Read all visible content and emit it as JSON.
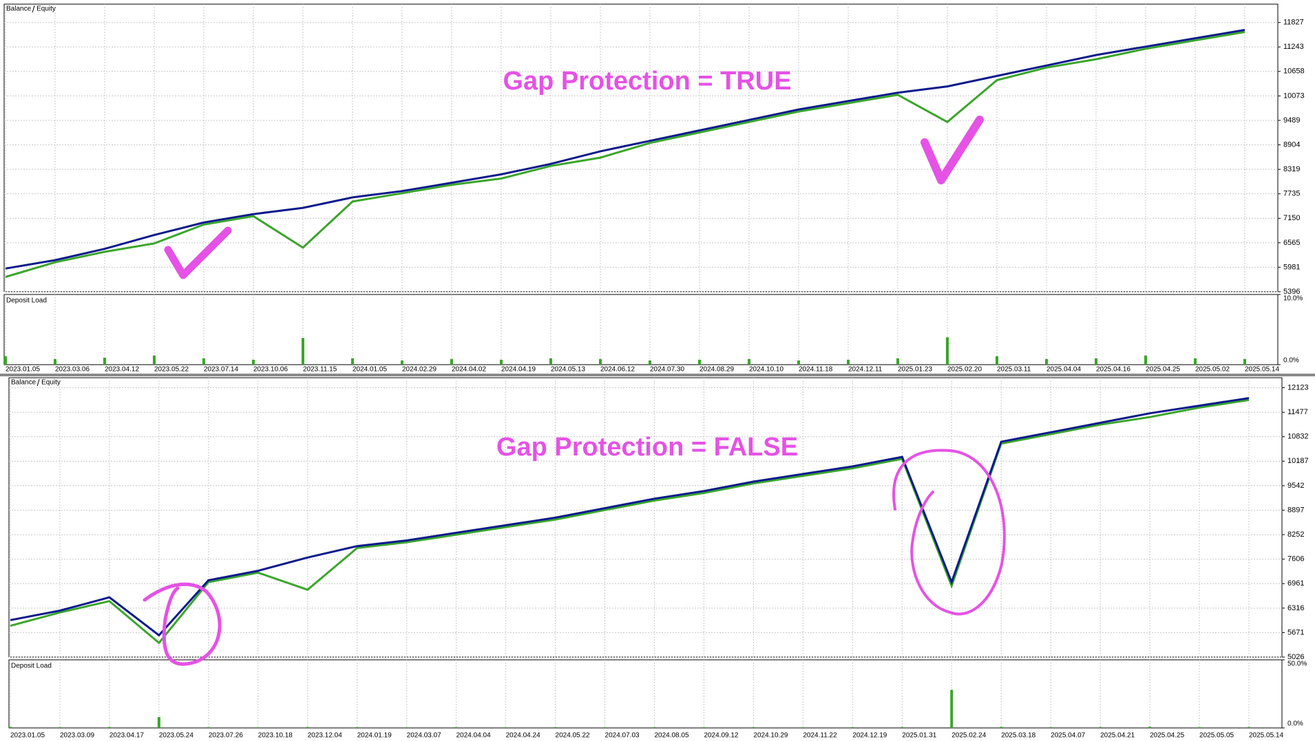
{
  "chart_data": [
    {
      "type": "line",
      "annotation": "Gap Protection = TRUE",
      "categories": [
        "2023.01.05",
        "2023.03.06",
        "2023.04.12",
        "2023.05.22",
        "2023.07.14",
        "2023.10.06",
        "2023.11.15",
        "2024.01.05",
        "2024.02.29",
        "2024.04.02",
        "2024.04.19",
        "2024.05.13",
        "2024.06.12",
        "2024.07.30",
        "2024.08.29",
        "2024.10.10",
        "2024.11.18",
        "2024.12.11",
        "2025.01.23",
        "2025.02.20",
        "2025.03.11",
        "2025.04.04",
        "2025.04.16",
        "2025.04.25",
        "2025.05.02",
        "2025.05.14"
      ],
      "series": [
        {
          "name": "Balance",
          "color": "#0a1a8c",
          "values": [
            5950,
            6150,
            6420,
            6750,
            7050,
            7250,
            7400,
            7650,
            7800,
            8000,
            8200,
            8450,
            8750,
            9000,
            9250,
            9500,
            9750,
            9950,
            10150,
            10300,
            10550,
            10800,
            11050,
            11250,
            11450,
            11650
          ]
        },
        {
          "name": "Equity",
          "color": "#3aa52a",
          "values": [
            5750,
            6100,
            6350,
            6550,
            7000,
            7200,
            6450,
            7550,
            7750,
            7950,
            8100,
            8400,
            8600,
            8950,
            9200,
            9450,
            9700,
            9900,
            10100,
            9450,
            10450,
            10750,
            10950,
            11200,
            11400,
            11600
          ]
        }
      ],
      "ylim": [
        5396,
        12266
      ],
      "yticks": [
        5396,
        5981,
        6565,
        7150,
        7735,
        8319,
        8904,
        9489,
        10073,
        10658,
        11243,
        11827
      ],
      "grid": true,
      "panel": {
        "type": "bar",
        "name": "Deposit Load",
        "color": "#3aa52a",
        "values": [
          1.2,
          0.8,
          1.0,
          1.3,
          0.9,
          0.7,
          3.8,
          0.9,
          0.6,
          0.8,
          0.7,
          0.9,
          0.8,
          0.6,
          0.7,
          0.8,
          0.6,
          0.7,
          0.9,
          3.9,
          1.2,
          0.8,
          0.9,
          1.3,
          0.9,
          0.8
        ],
        "ylim": [
          0,
          10
        ],
        "yticks": [
          {
            "value": 0,
            "label": "0.0%"
          },
          {
            "value": 10,
            "label": "10.0%"
          }
        ]
      }
    },
    {
      "type": "line",
      "annotation": "Gap Protection = FALSE",
      "categories": [
        "2023.01.05",
        "2023.03.09",
        "2023.04.17",
        "2023.05.24",
        "2023.07.26",
        "2023.10.18",
        "2023.12.04",
        "2024.01.19",
        "2024.03.07",
        "2024.04.04",
        "2024.04.24",
        "2024.05.22",
        "2024.07.03",
        "2024.08.05",
        "2024.09.12",
        "2024.10.29",
        "2024.11.22",
        "2024.12.19",
        "2025.01.31",
        "2025.02.24",
        "2025.03.18",
        "2025.04.07",
        "2025.04.21",
        "2025.04.25",
        "2025.05.05",
        "2025.05.14"
      ],
      "series": [
        {
          "name": "Balance",
          "color": "#0a1a8c",
          "values": [
            6000,
            6250,
            6600,
            5600,
            7050,
            7300,
            7650,
            7950,
            8100,
            8300,
            8500,
            8700,
            8950,
            9200,
            9400,
            9650,
            9850,
            10050,
            10300,
            7000,
            10700,
            10950,
            11200,
            11450,
            11650,
            11850
          ]
        },
        {
          "name": "Equity",
          "color": "#3aa52a",
          "values": [
            5850,
            6200,
            6500,
            5400,
            7000,
            7250,
            6800,
            7900,
            8050,
            8250,
            8450,
            8650,
            8900,
            9150,
            9350,
            9600,
            9800,
            10000,
            10250,
            6900,
            10650,
            10900,
            11150,
            11350,
            11600,
            11800
          ]
        }
      ],
      "ylim": [
        5026,
        12387
      ],
      "yticks": [
        5026,
        5671,
        6316,
        6961,
        7606,
        8252,
        8897,
        9542,
        10187,
        10832,
        11477,
        12123
      ],
      "grid": true,
      "panel": {
        "type": "bar",
        "name": "Deposit Load",
        "color": "#3aa52a",
        "values": [
          0.8,
          0.6,
          0.7,
          8,
          0.6,
          0.5,
          0.7,
          0.6,
          0.5,
          0.6,
          0.5,
          0.6,
          0.5,
          0.6,
          0.5,
          0.6,
          0.5,
          0.6,
          0.7,
          28,
          0.8,
          0.6,
          0.7,
          0.9,
          0.6,
          0.7
        ],
        "ylim": [
          0,
          50
        ],
        "yticks": [
          {
            "value": 0,
            "label": "0.0%"
          },
          {
            "value": 50,
            "label": "50.0%"
          }
        ]
      }
    }
  ]
}
